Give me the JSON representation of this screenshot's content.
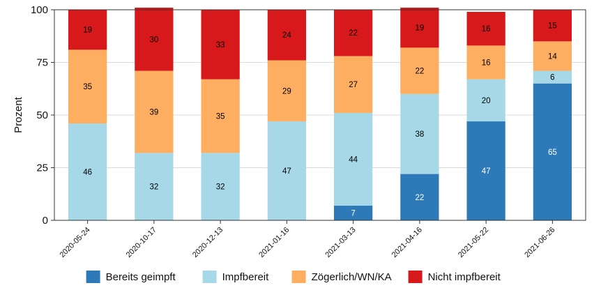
{
  "chart_data": {
    "type": "bar",
    "stacked": true,
    "title": "",
    "xlabel": "",
    "ylabel": "Prozent",
    "ylim": [
      0,
      100
    ],
    "yticks": [
      0,
      25,
      50,
      75,
      100
    ],
    "grid": true,
    "legend_position": "bottom",
    "categories": [
      "2020-05-24",
      "2020-10-17",
      "2020-12-13",
      "2021-01-16",
      "2021-03-13",
      "2021-04-16",
      "2021-05-22",
      "2021-06-26"
    ],
    "series": [
      {
        "name": "Bereits geimpft",
        "color": "#2e7ab8",
        "label_color": "#ffffff",
        "values": [
          0,
          0,
          0,
          0,
          7,
          22,
          47,
          65
        ],
        "labels": [
          "",
          "",
          "",
          "",
          "7",
          "22",
          "47",
          "65"
        ]
      },
      {
        "name": "Impfbereit",
        "color": "#a6d8e8",
        "label_color": "#000000",
        "values": [
          46,
          32,
          32,
          47,
          44,
          38,
          20,
          6
        ],
        "labels": [
          "46",
          "32",
          "32",
          "47",
          "44",
          "38",
          "20",
          "6"
        ]
      },
      {
        "name": "Zögerlich/WN/KA",
        "color": "#fdae61",
        "label_color": "#000000",
        "values": [
          35,
          39,
          35,
          29,
          27,
          22,
          16,
          14
        ],
        "labels": [
          "35",
          "39",
          "35",
          "29",
          "27",
          "22",
          "16",
          "14"
        ]
      },
      {
        "name": "Nicht impfbereit",
        "color": "#d7191c",
        "label_color": "#000000",
        "values": [
          19,
          30,
          33,
          24,
          22,
          19,
          16,
          15
        ],
        "labels": [
          "19",
          "30",
          "33",
          "24",
          "22",
          "19",
          "16",
          "15"
        ]
      }
    ]
  }
}
